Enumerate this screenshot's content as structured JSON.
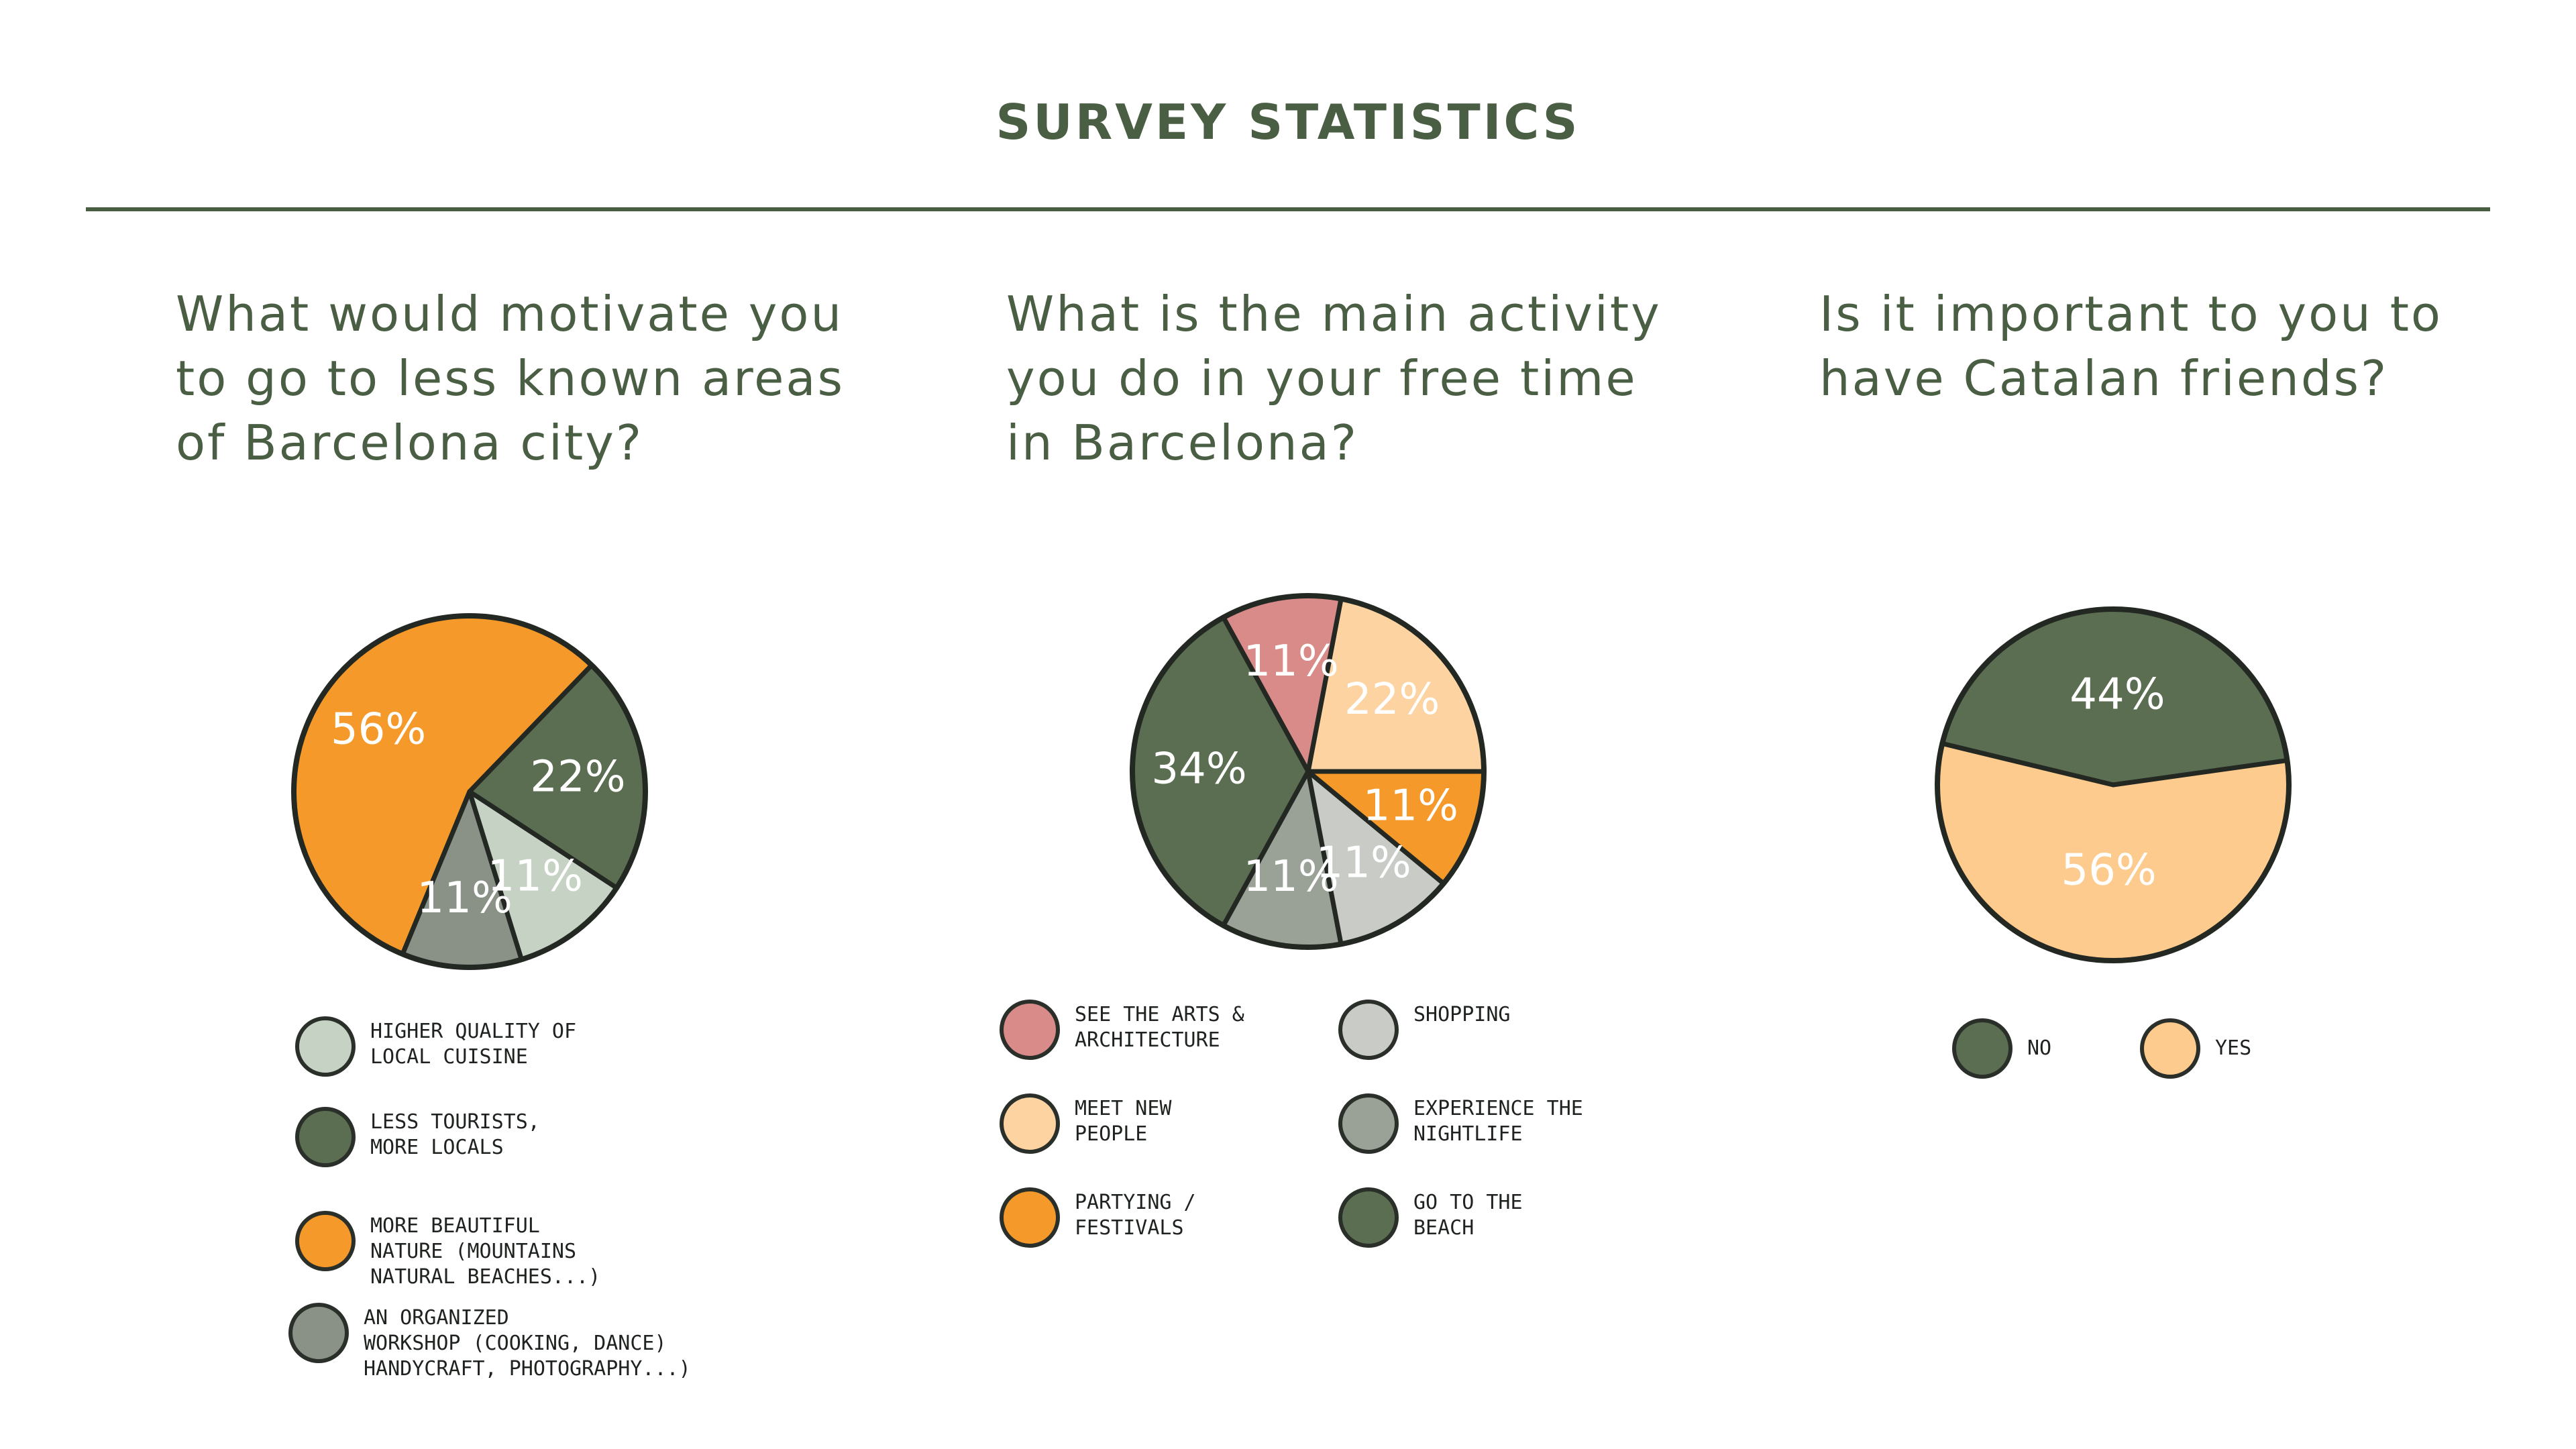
{
  "page": {
    "title": "SURVEY STATISTICS"
  },
  "chart_data": [
    {
      "type": "pie",
      "title": "What would motivate you to go to less known areas of Barcelona city?",
      "slices": [
        {
          "label": "MORE BEAUTIFUL NATURE (MOUNTAINS NATURAL BEACHES...)",
          "value": 56,
          "display": "56%",
          "color": "#f59a2a"
        },
        {
          "label": "AN ORGANIZED WORKSHOP (COOKING, DANCE HANDYCRAFT, PHOTOGRAPHY...)",
          "value": 11,
          "display": "11%",
          "color": "#8a9186"
        },
        {
          "label": "HIGHER QUALITY OF LOCAL CUISINE",
          "value": 11,
          "display": "11%",
          "color": "#c6d3c4"
        },
        {
          "label": "LESS TOURISTS, MORE LOCALS",
          "value": 22,
          "display": "22%",
          "color": "#5b6e52"
        }
      ],
      "legend": [
        {
          "text": "HIGHER QUALITY OF\nLOCAL CUISINE",
          "color": "#c6d3c4"
        },
        {
          "text": "LESS TOURISTS,\nMORE LOCALS",
          "color": "#5b6e52"
        },
        {
          "text": "MORE BEAUTIFUL\nNATURE (MOUNTAINS\nNATURAL BEACHES...)",
          "color": "#f59a2a"
        },
        {
          "text": "AN ORGANIZED\nWORKSHOP (COOKING, DANCE)\nHANDYCRAFT, PHOTOGRAPHY...)",
          "color": "#8a9186"
        }
      ]
    },
    {
      "type": "pie",
      "title": "What is the main activity you do in your free time in Barcelona?",
      "slices": [
        {
          "label": "MEET NEW PEOPLE",
          "value": 22,
          "display": "22%",
          "color": "#fdd3a2"
        },
        {
          "label": "SEE THE ARTS & ARCHITECTURE",
          "value": 11,
          "display": "11%",
          "color": "#d88b88"
        },
        {
          "label": "GO TO THE BEACH",
          "value": 34,
          "display": "34%",
          "color": "#5b6e52"
        },
        {
          "label": "EXPERIENCE THE NIGHTLIFE",
          "value": 11,
          "display": "11%",
          "color": "#9aa196"
        },
        {
          "label": "SHOPPING",
          "value": 11,
          "display": "11%",
          "color": "#c9ccc6"
        },
        {
          "label": "PARTYING / FESTIVALS",
          "value": 11,
          "display": "11%",
          "color": "#f59a2a"
        }
      ],
      "legend": [
        {
          "text": "SEE THE ARTS &\nARCHITECTURE",
          "color": "#d88b88"
        },
        {
          "text": "SHOPPING",
          "color": "#c9ccc6"
        },
        {
          "text": "MEET NEW\nPEOPLE",
          "color": "#fdd3a2"
        },
        {
          "text": "EXPERIENCE THE\nNIGHTLIFE",
          "color": "#9aa196"
        },
        {
          "text": "PARTYING /\nFESTIVALS",
          "color": "#f59a2a"
        },
        {
          "text": "GO TO THE\nBEACH",
          "color": "#5b6e52"
        }
      ]
    },
    {
      "type": "pie",
      "title": "Is it important to you to have Catalan friends?",
      "slices": [
        {
          "label": "NO",
          "value": 44,
          "display": "44%",
          "color": "#5b6e52"
        },
        {
          "label": "YES",
          "value": 56,
          "display": "56%",
          "color": "#fdcb8e"
        }
      ],
      "legend": [
        {
          "text": "NO",
          "color": "#5b6e52"
        },
        {
          "text": "YES",
          "color": "#fdcb8e"
        }
      ]
    }
  ]
}
